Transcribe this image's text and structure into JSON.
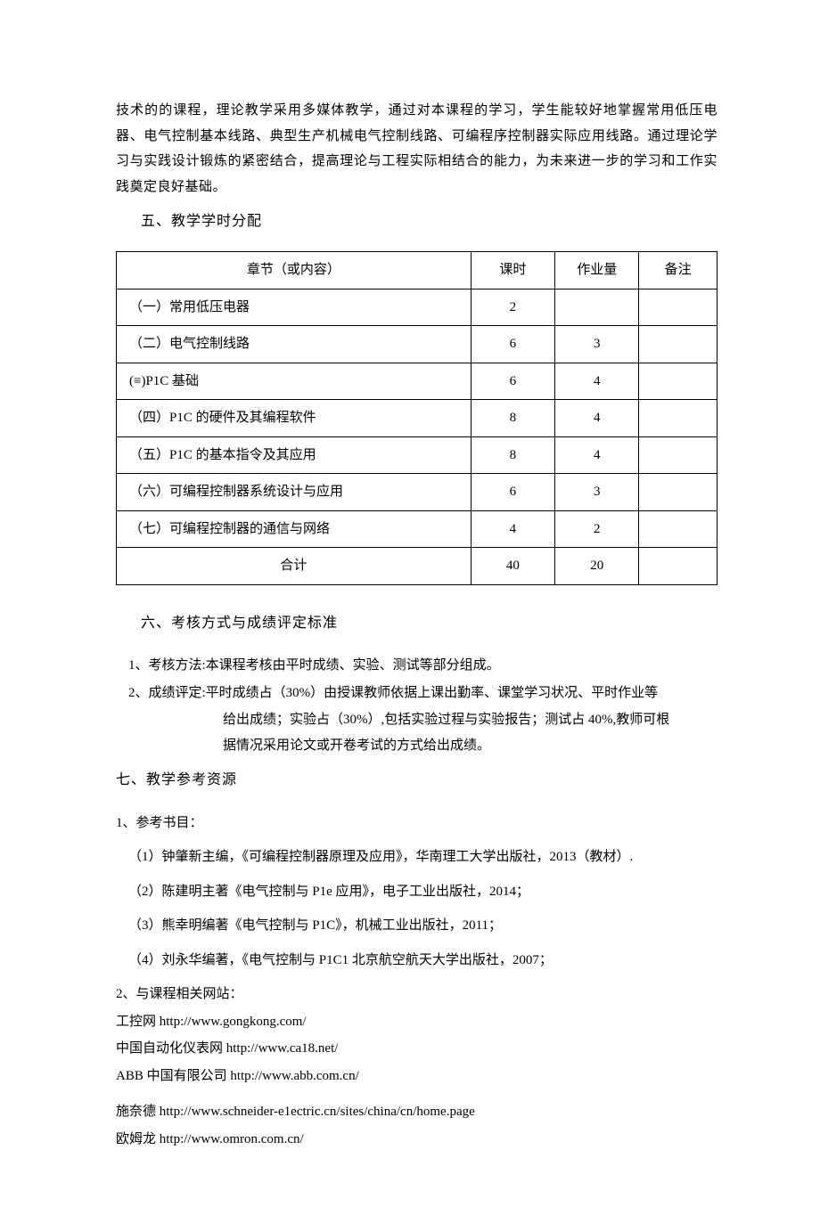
{
  "colors": {
    "text": "#000000",
    "background": "#ffffff",
    "table_border": "#000000"
  },
  "typography": {
    "body_font": "SimSun",
    "body_size_pt": 11,
    "heading_size_pt": 12,
    "line_height": 1.9
  },
  "intro_paragraph": "技术的的课程，理论教学采用多媒体教学，通过对本课程的学习，学生能较好地掌握常用低压电器、电气控制基本线路、典型生产机械电气控制线路、可编程序控制器实际应用线路。通过理论学习与实践设计锻炼的紧密结合，提高理论与工程实际相结合的能力，为未来进一步的学习和工作实践奠定良好基础。",
  "section5": {
    "heading": "五、教学学时分配",
    "table": {
      "columns": [
        "章节（或内容）",
        "课时",
        "作业量",
        "备注"
      ],
      "col_widths_pct": [
        59,
        14,
        14,
        13
      ],
      "rows": [
        {
          "chapter": "（一）常用低压电器",
          "hours": "2",
          "work": "",
          "note": ""
        },
        {
          "chapter": "（二）电气控制线路",
          "hours": "6",
          "work": "3",
          "note": ""
        },
        {
          "chapter": "(≡)P1C 基础",
          "hours": "6",
          "work": "4",
          "note": ""
        },
        {
          "chapter": "（四）P1C 的硬件及其编程软件",
          "hours": "8",
          "work": "4",
          "note": ""
        },
        {
          "chapter": "（五）P1C 的基本指令及其应用",
          "hours": "8",
          "work": "4",
          "note": ""
        },
        {
          "chapter": "（六）可编程控制器系统设计与应用",
          "hours": "6",
          "work": "3",
          "note": ""
        },
        {
          "chapter": "（七）可编程控制器的通信与网络",
          "hours": "4",
          "work": "2",
          "note": ""
        }
      ],
      "total_row": {
        "label": "合计",
        "hours": "40",
        "work": "20",
        "note": ""
      }
    }
  },
  "section6": {
    "heading": "六、考核方式与成绩评定标准",
    "item1": "1、考核方法:本课程考核由平时成绩、实验、测试等部分组成。",
    "item2_line1": "2、成绩评定:平时成绩占（30%）由授课教师依据上课出勤率、课堂学习状况、平时作业等",
    "item2_line2": "给出成绩；实验占（30%）,包括实验过程与实验报告；测试占 40%,教师可根",
    "item2_line3": "据情况采用论文或开卷考试的方式给出成绩。"
  },
  "section7": {
    "heading": "七、教学参考资源",
    "books_label": "1、参考书目：",
    "books": [
      "（1）钟肇新主编，《可编程控制器原理及应用》，华南理工大学出版社，2013（教材）.",
      "（2）陈建明主著《电气控制与 P1e 应用》，电子工业出版社，2014；",
      "（3）熊幸明编著《电气控制与 P1C》，机械工业出版社，2011；",
      "（4）刘永华编著，《电气控制与 P1C1 北京航空航天大学出版社，2007；"
    ],
    "sites_label": "2、与课程相关网站：",
    "sites": [
      "工控网 http://www.gongkong.com/",
      "中国自动化仪表网 http://www.ca18.net/",
      "ABB 中国有限公司 http://www.abb.com.cn/",
      "施奈德 http://www.schneider-e1ectric.cn/sites/china/cn/home.page",
      "欧姆龙 http://www.omron.com.cn/"
    ]
  }
}
